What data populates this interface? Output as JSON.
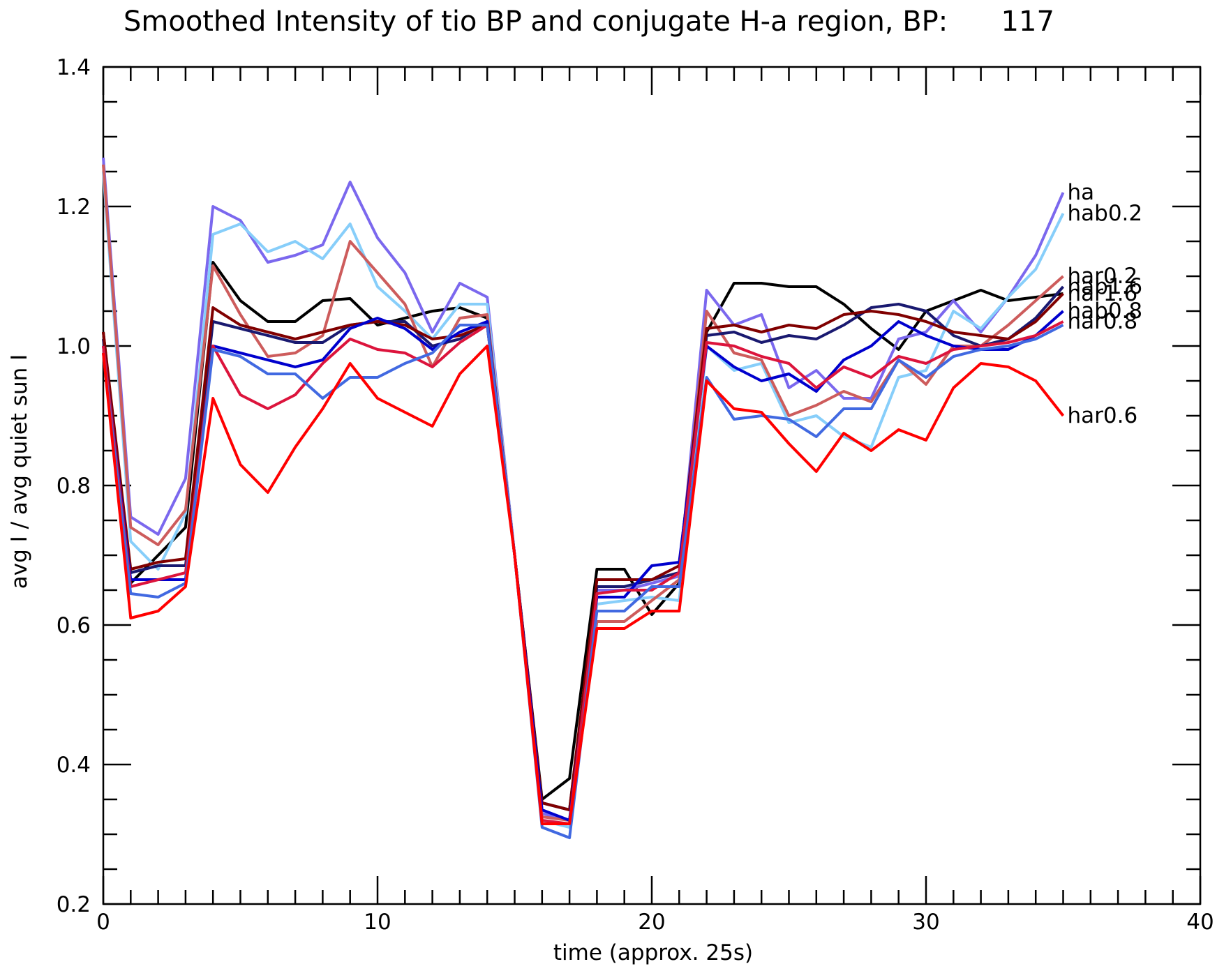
{
  "chart_data": {
    "type": "line",
    "title": "Smoothed Intensity of tio BP and conjugate H-a region, BP:      117",
    "xlabel": "time (approx. 25s)",
    "ylabel": "avg I / avg quiet sun I",
    "xlim": [
      0,
      40
    ],
    "ylim": [
      0.2,
      1.4
    ],
    "x_ticks": [
      0,
      10,
      20,
      30,
      40
    ],
    "x_tick_labels": [
      "0",
      "10",
      "20",
      "30",
      "40"
    ],
    "y_ticks": [
      0.2,
      0.4,
      0.6,
      0.8,
      1.0,
      1.2,
      1.4
    ],
    "y_tick_labels": [
      "0.2",
      "0.4",
      "0.6",
      "0.8",
      "1.0",
      "1.2",
      "1.4"
    ],
    "grid": false,
    "x": [
      0,
      1,
      2,
      3,
      4,
      5,
      6,
      7,
      8,
      9,
      10,
      11,
      12,
      13,
      14,
      15,
      16,
      17,
      18,
      19,
      20,
      21,
      22,
      23,
      24,
      25,
      26,
      27,
      28,
      29,
      30,
      31,
      32,
      33,
      34,
      35
    ],
    "series": [
      {
        "color": "#000000",
        "label": "",
        "values": [
          1.02,
          0.66,
          0.7,
          0.74,
          1.12,
          1.065,
          1.035,
          1.035,
          1.065,
          1.068,
          1.03,
          1.04,
          1.05,
          1.055,
          1.04,
          0.7,
          0.35,
          0.38,
          0.68,
          0.68,
          0.615,
          0.66,
          1.02,
          1.09,
          1.09,
          1.085,
          1.085,
          1.06,
          1.025,
          0.995,
          1.05,
          1.065,
          1.08,
          1.065,
          1.07,
          1.075
        ]
      },
      {
        "color": "#7b68ee",
        "label": "ha",
        "values": [
          1.27,
          0.755,
          0.73,
          0.81,
          1.2,
          1.18,
          1.12,
          1.13,
          1.145,
          1.235,
          1.155,
          1.105,
          1.02,
          1.09,
          1.07,
          0.7,
          0.33,
          0.32,
          0.65,
          0.65,
          0.66,
          0.67,
          1.08,
          1.03,
          1.045,
          0.94,
          0.965,
          0.925,
          0.925,
          1.01,
          1.02,
          1.065,
          1.02,
          1.07,
          1.13,
          1.22
        ]
      },
      {
        "color": "#87cefa",
        "label": "hab0.2",
        "values": [
          1.25,
          0.72,
          0.68,
          0.76,
          1.16,
          1.175,
          1.135,
          1.15,
          1.125,
          1.175,
          1.085,
          1.05,
          1.01,
          1.06,
          1.06,
          0.7,
          0.32,
          0.31,
          0.63,
          0.635,
          0.64,
          0.635,
          1.0,
          0.965,
          0.975,
          0.89,
          0.9,
          0.87,
          0.855,
          0.955,
          0.965,
          1.05,
          1.025,
          1.07,
          1.11,
          1.19
        ]
      },
      {
        "color": "#cd5c5c",
        "label": "har0.2",
        "values": [
          1.26,
          0.74,
          0.715,
          0.765,
          1.115,
          1.045,
          0.985,
          0.99,
          1.015,
          1.15,
          1.105,
          1.06,
          0.97,
          1.04,
          1.045,
          0.7,
          0.325,
          0.32,
          0.605,
          0.605,
          0.635,
          0.665,
          1.05,
          0.99,
          0.98,
          0.9,
          0.915,
          0.935,
          0.92,
          0.98,
          0.945,
          1.0,
          1.0,
          1.03,
          1.065,
          1.1
        ]
      },
      {
        "color": "#191970",
        "label": "hab1.6",
        "values": [
          1.01,
          0.675,
          0.685,
          0.685,
          1.035,
          1.025,
          1.015,
          1.005,
          1.005,
          1.03,
          1.035,
          1.035,
          1.0,
          1.01,
          1.035,
          0.7,
          0.345,
          0.335,
          0.655,
          0.655,
          0.665,
          0.675,
          1.015,
          1.02,
          1.005,
          1.015,
          1.01,
          1.03,
          1.055,
          1.06,
          1.05,
          1.015,
          1.0,
          1.01,
          1.04,
          1.085
        ]
      },
      {
        "color": "#800000",
        "label": "har1.6",
        "values": [
          1.02,
          0.68,
          0.69,
          0.695,
          1.055,
          1.03,
          1.02,
          1.01,
          1.02,
          1.03,
          1.035,
          1.03,
          1.01,
          1.015,
          1.03,
          0.7,
          0.345,
          0.335,
          0.665,
          0.665,
          0.665,
          0.685,
          1.025,
          1.03,
          1.02,
          1.03,
          1.025,
          1.045,
          1.05,
          1.045,
          1.035,
          1.02,
          1.015,
          1.01,
          1.035,
          1.075
        ]
      },
      {
        "color": "#0000cd",
        "label": "hab0.8",
        "values": [
          1.0,
          0.665,
          0.665,
          0.665,
          1.0,
          0.99,
          0.98,
          0.97,
          0.98,
          1.025,
          1.04,
          1.025,
          0.995,
          1.02,
          1.035,
          0.7,
          0.335,
          0.32,
          0.64,
          0.64,
          0.685,
          0.69,
          1.0,
          0.97,
          0.95,
          0.96,
          0.935,
          0.98,
          1.0,
          1.035,
          1.015,
          1.0,
          0.995,
          0.995,
          1.015,
          1.05
        ]
      },
      {
        "color": "#dc143c",
        "label": "har0.8",
        "values": [
          1.0,
          0.655,
          0.665,
          0.675,
          1.0,
          0.93,
          0.91,
          0.93,
          0.975,
          1.01,
          0.995,
          0.99,
          0.97,
          1.005,
          1.03,
          0.7,
          0.32,
          0.315,
          0.645,
          0.65,
          0.65,
          0.675,
          1.005,
          1.0,
          0.985,
          0.975,
          0.94,
          0.97,
          0.955,
          0.985,
          0.975,
          0.995,
          1.0,
          1.005,
          1.015,
          1.035
        ]
      },
      {
        "color": "#4169e1",
        "label": "",
        "values": [
          0.99,
          0.645,
          0.64,
          0.66,
          0.995,
          0.985,
          0.96,
          0.96,
          0.925,
          0.955,
          0.955,
          0.975,
          0.99,
          1.03,
          1.03,
          0.7,
          0.31,
          0.295,
          0.62,
          0.62,
          0.655,
          0.655,
          0.955,
          0.895,
          0.9,
          0.895,
          0.87,
          0.91,
          0.91,
          0.98,
          0.955,
          0.985,
          0.995,
          1.0,
          1.01,
          1.03
        ]
      },
      {
        "color": "#ff0000",
        "label": "har0.6",
        "values": [
          0.99,
          0.61,
          0.62,
          0.655,
          0.925,
          0.83,
          0.79,
          0.855,
          0.91,
          0.975,
          0.925,
          0.905,
          0.885,
          0.96,
          1.0,
          0.7,
          0.315,
          0.315,
          0.595,
          0.595,
          0.62,
          0.62,
          0.95,
          0.91,
          0.905,
          0.86,
          0.82,
          0.875,
          0.85,
          0.88,
          0.865,
          0.94,
          0.975,
          0.97,
          0.95,
          0.9
        ]
      }
    ]
  }
}
